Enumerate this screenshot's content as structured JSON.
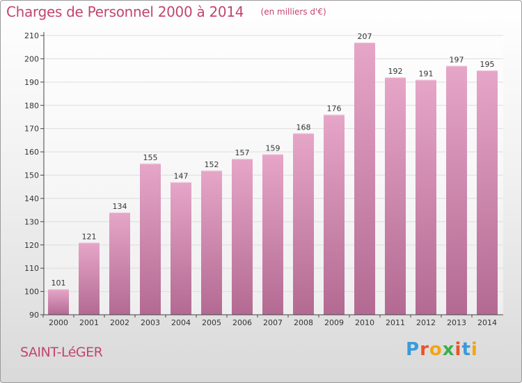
{
  "title": "Charges de Personnel 2000 à 2014",
  "unit_note": "(en milliers d'€)",
  "location": "SAINT-LéGER",
  "brand": {
    "text": "Proxiti",
    "letter_colors": [
      "#3a9ad9",
      "#e8542a",
      "#f2a516",
      "#3dae4a",
      "#e8542a",
      "#3a9ad9",
      "#f2a516"
    ]
  },
  "colors": {
    "bar_top": "#e6a6c8",
    "bar_bottom": "#b36a92",
    "title": "#c2456e",
    "grid": "#dddddd",
    "axis": "#444444"
  },
  "chart_data": {
    "type": "bar",
    "title": "Charges de Personnel 2000 à 2014",
    "subtitle": "(en milliers d'€)",
    "xlabel": "",
    "ylabel": "",
    "categories": [
      "2000",
      "2001",
      "2002",
      "2003",
      "2004",
      "2005",
      "2006",
      "2007",
      "2008",
      "2009",
      "2010",
      "2011",
      "2012",
      "2013",
      "2014"
    ],
    "values": [
      101,
      121,
      134,
      155,
      147,
      152,
      157,
      159,
      168,
      176,
      207,
      192,
      191,
      197,
      195
    ],
    "ylim": [
      90,
      210
    ],
    "yticks": [
      90,
      100,
      110,
      120,
      130,
      140,
      150,
      160,
      170,
      180,
      190,
      200,
      210
    ],
    "grid": true,
    "legend": "none"
  }
}
